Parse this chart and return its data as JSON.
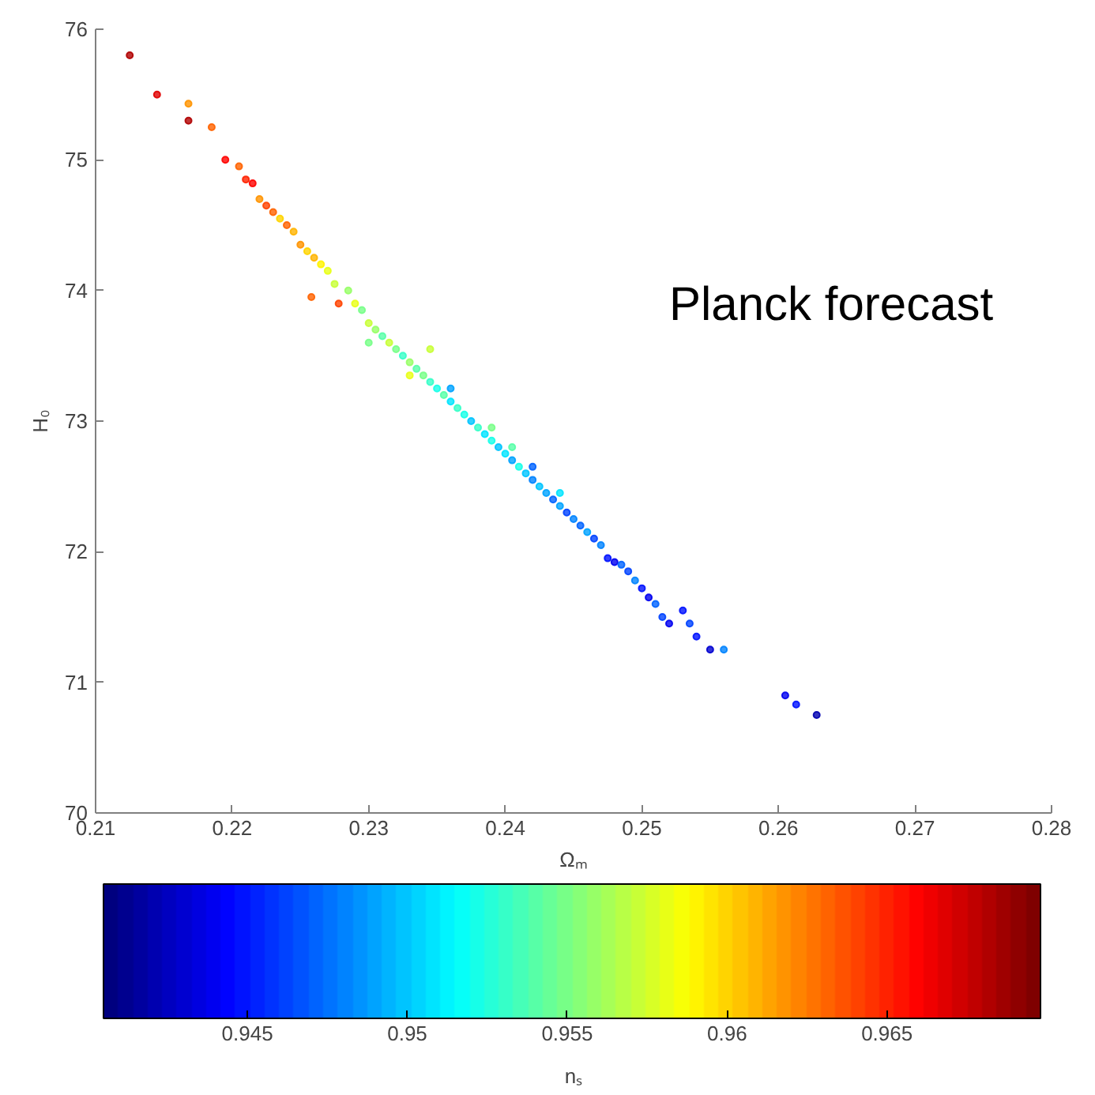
{
  "chart_data": {
    "type": "scatter",
    "xlabel": "Ωₘ",
    "ylabel": "H₀",
    "clabel": "nₛ",
    "annotations": [
      "Planck forecast"
    ],
    "xlim": [
      0.21,
      0.28
    ],
    "xticks": [
      0.21,
      0.22,
      0.23,
      0.24,
      0.25,
      0.26,
      0.27,
      0.28
    ],
    "ylim": [
      70,
      76
    ],
    "yticks": [
      70,
      71,
      72,
      73,
      74,
      75,
      76
    ],
    "clim": [
      0.9405,
      0.9698
    ],
    "cticks": [
      0.945,
      0.95,
      0.955,
      0.96,
      0.965
    ],
    "marker": "circle",
    "grid": false,
    "x": [
      0.2125,
      0.2145,
      0.2168,
      0.2168,
      0.2185,
      0.2195,
      0.2205,
      0.221,
      0.2215,
      0.222,
      0.2225,
      0.223,
      0.2235,
      0.224,
      0.2245,
      0.225,
      0.2255,
      0.226,
      0.2265,
      0.227,
      0.2258,
      0.2278,
      0.2275,
      0.2285,
      0.229,
      0.2295,
      0.23,
      0.2305,
      0.231,
      0.2315,
      0.232,
      0.2325,
      0.233,
      0.2335,
      0.234,
      0.2345,
      0.235,
      0.2355,
      0.236,
      0.2365,
      0.237,
      0.2375,
      0.238,
      0.2385,
      0.239,
      0.2395,
      0.24,
      0.2405,
      0.241,
      0.2415,
      0.242,
      0.2425,
      0.243,
      0.2435,
      0.244,
      0.2445,
      0.245,
      0.2455,
      0.246,
      0.2465,
      0.247,
      0.2475,
      0.248,
      0.2485,
      0.249,
      0.2495,
      0.25,
      0.2505,
      0.251,
      0.2515,
      0.252,
      0.253,
      0.2535,
      0.254,
      0.255,
      0.256,
      0.2605,
      0.2613,
      0.2628,
      0.23,
      0.233,
      0.236,
      0.239,
      0.242,
      0.244,
      0.2345,
      0.2405
    ],
    "values": [
      75.8,
      75.5,
      75.43,
      75.3,
      75.25,
      75.0,
      74.95,
      74.85,
      74.82,
      74.7,
      74.65,
      74.6,
      74.55,
      74.5,
      74.45,
      74.35,
      74.3,
      74.25,
      74.2,
      74.15,
      73.95,
      73.9,
      74.05,
      74.0,
      73.9,
      73.85,
      73.75,
      73.7,
      73.65,
      73.6,
      73.55,
      73.5,
      73.45,
      73.4,
      73.35,
      73.3,
      73.25,
      73.2,
      73.15,
      73.1,
      73.05,
      73.0,
      72.95,
      72.9,
      72.85,
      72.8,
      72.75,
      72.7,
      72.65,
      72.6,
      72.55,
      72.5,
      72.45,
      72.4,
      72.35,
      72.3,
      72.25,
      72.2,
      72.15,
      72.1,
      72.05,
      71.95,
      71.92,
      71.9,
      71.85,
      71.78,
      71.72,
      71.65,
      71.6,
      71.5,
      71.45,
      71.55,
      71.45,
      71.35,
      71.25,
      71.25,
      70.9,
      70.83,
      70.75,
      73.6,
      73.35,
      73.25,
      72.95,
      72.65,
      72.45,
      73.55,
      72.8
    ],
    "cvalues": [
      0.968,
      0.967,
      0.962,
      0.968,
      0.963,
      0.966,
      0.963,
      0.965,
      0.966,
      0.962,
      0.964,
      0.963,
      0.96,
      0.963,
      0.961,
      0.962,
      0.96,
      0.961,
      0.959,
      0.958,
      0.963,
      0.964,
      0.957,
      0.956,
      0.958,
      0.955,
      0.957,
      0.956,
      0.954,
      0.957,
      0.955,
      0.953,
      0.956,
      0.954,
      0.955,
      0.953,
      0.952,
      0.954,
      0.951,
      0.953,
      0.952,
      0.95,
      0.953,
      0.951,
      0.952,
      0.95,
      0.951,
      0.949,
      0.952,
      0.95,
      0.948,
      0.95,
      0.949,
      0.947,
      0.949,
      0.946,
      0.948,
      0.947,
      0.949,
      0.946,
      0.948,
      0.945,
      0.944,
      0.947,
      0.946,
      0.948,
      0.945,
      0.944,
      0.947,
      0.946,
      0.944,
      0.945,
      0.946,
      0.945,
      0.943,
      0.948,
      0.944,
      0.945,
      0.942,
      0.955,
      0.958,
      0.949,
      0.955,
      0.947,
      0.951,
      0.957,
      0.954
    ]
  }
}
